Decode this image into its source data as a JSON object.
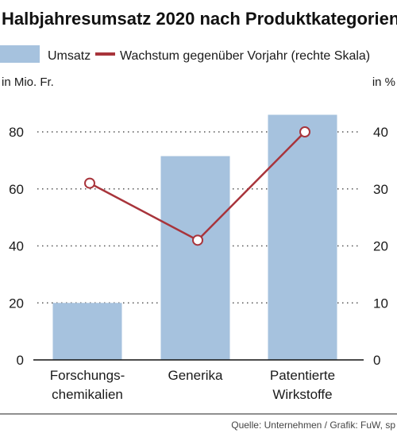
{
  "title": "Halbjahresumsatz 2020 nach Produktkategorien",
  "legend": {
    "bar_label": "Umsatz",
    "line_label": "Wachstum gegenüber Vorjahr (rechte Skala)"
  },
  "axis": {
    "left_unit": "in Mio. Fr.",
    "right_unit": "in %"
  },
  "source": "Quelle: Unternehmen / Grafik: FuW, sp",
  "colors": {
    "bar": "#a6c2de",
    "line": "#a8343b",
    "grid": "#555555",
    "text": "#1a1a1a"
  },
  "chart_data": {
    "type": "bar",
    "categories": [
      [
        "Forschungs-",
        "chemikalien"
      ],
      [
        "Generika"
      ],
      [
        "Patentierte",
        "Wirkstoffe"
      ]
    ],
    "series": [
      {
        "name": "Umsatz",
        "type": "bar",
        "axis": "left",
        "values": [
          20,
          71.5,
          86
        ]
      },
      {
        "name": "Wachstum gegenüber Vorjahr (rechte Skala)",
        "type": "line",
        "axis": "right",
        "values": [
          31,
          21,
          40
        ]
      }
    ],
    "y_left": {
      "label": "in Mio. Fr.",
      "range": [
        0,
        90
      ],
      "ticks": [
        0,
        20,
        40,
        60,
        80
      ]
    },
    "y_right": {
      "label": "in %",
      "range": [
        0,
        45
      ],
      "ticks": [
        0,
        10,
        20,
        30,
        40
      ]
    },
    "grid": "dotted horizontal",
    "legend_position": "top"
  }
}
